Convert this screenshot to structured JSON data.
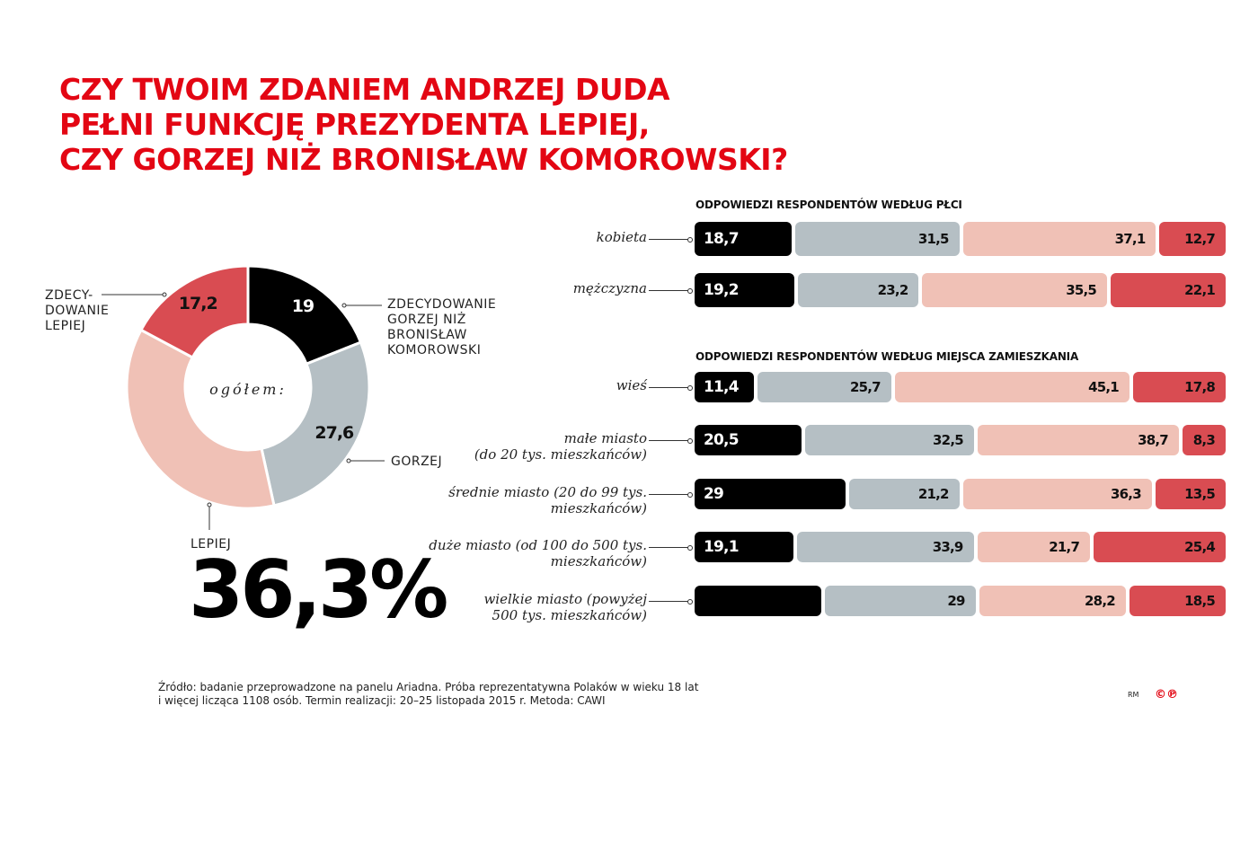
{
  "title_lines": [
    "CZY TWOIM ZDANIEM ANDRZEJ DUDA",
    "PEŁNI FUNKCJĘ PREZYDENTA LEPIEJ,",
    "CZY GORZEJ NIŻ BRONISŁAW KOMOROWSKI?"
  ],
  "colors": {
    "zdecydowanie_gorzej": "#000000",
    "gorzej": "#b5bfc4",
    "lepiej": "#f0c1b6",
    "zdecydowanie_lepiej": "#d94c52",
    "title": "#e30613"
  },
  "chart_data": [
    {
      "type": "pie",
      "subtype": "donut",
      "center_label": "ogółem:",
      "slices": [
        {
          "name": "ZDECYDOWANIE GORZEJ NIŻ BRONISŁAW KOMOROWSKI",
          "value": 19,
          "label": "19"
        },
        {
          "name": "GORZEJ",
          "value": 27.6,
          "label": "27,6"
        },
        {
          "name": "LEPIEJ",
          "value": 36.3,
          "label": "36,3%"
        },
        {
          "name": "ZDECY-DOWANIE LEPIEJ",
          "value": 17.2,
          "label": "17,2"
        }
      ]
    },
    {
      "type": "bar",
      "stacked": true,
      "orientation": "horizontal",
      "title": "ODPOWIEDZI RESPONDENTÓW WEDŁUG PŁCI",
      "categories": [
        "kobieta",
        "mężczyzna"
      ],
      "rows": [
        {
          "values": [
            18.7,
            31.5,
            37.1,
            12.7
          ],
          "labels": [
            "18,7",
            "31,5",
            "37,1",
            "12,7"
          ]
        },
        {
          "values": [
            19.2,
            23.2,
            35.5,
            22.1
          ],
          "labels": [
            "19,2",
            "23,2",
            "35,5",
            "22,1"
          ]
        }
      ]
    },
    {
      "type": "bar",
      "stacked": true,
      "orientation": "horizontal",
      "title": "ODPOWIEDZI RESPONDENTÓW WEDŁUG MIEJSCA ZAMIESZKANIA",
      "categories": [
        "wieś",
        "małe miasto\n(do 20 tys. mieszkańców)",
        "średnie miasto (20 do 99 tys.\nmieszkańców)",
        "duże miasto (od 100 do 500 tys.\nmieszkańców)",
        "wielkie miasto (powyżej\n500 tys. mieszkańców)"
      ],
      "rows": [
        {
          "values": [
            11.4,
            25.7,
            45.1,
            17.8
          ],
          "labels": [
            "11,4",
            "25,7",
            "45,1",
            "17,8"
          ]
        },
        {
          "values": [
            20.5,
            32.5,
            38.7,
            8.3
          ],
          "labels": [
            "20,5",
            "32,5",
            "38,7",
            "8,3"
          ]
        },
        {
          "values": [
            29,
            21.2,
            36.3,
            13.5
          ],
          "labels": [
            "29",
            "21,2",
            "36,3",
            "13,5"
          ]
        },
        {
          "values": [
            19.1,
            33.9,
            21.7,
            25.4
          ],
          "labels": [
            "19,1",
            "33,9",
            "21,7",
            "25,4"
          ]
        },
        {
          "values": [
            24.3,
            29,
            28.2,
            18.5
          ],
          "labels": [
            "",
            "29",
            "28,2",
            "18,5"
          ]
        }
      ]
    }
  ],
  "donut_labels": {
    "zdecydowanie_gorzej": [
      "ZDECYDOWANIE",
      "GORZEJ NIŻ",
      "BRONISŁAW",
      "KOMOROWSKI"
    ],
    "gorzej": "GORZEJ",
    "lepiej": "LEPIEJ",
    "zdecydowanie_lepiej": [
      "ZDECY-",
      "DOWANIE",
      "LEPIEJ"
    ],
    "big_value": "36,3%"
  },
  "source": [
    "Źródło: badanie przeprowadzone na panelu Ariadna. Próba reprezentatywna Polaków w wieku 18 lat",
    "i więcej licząca 1108 osób. Termin realizacji: 20–25 listopada 2015 r. Metoda: CAWI"
  ],
  "credit": "RM",
  "logo": "©℗"
}
